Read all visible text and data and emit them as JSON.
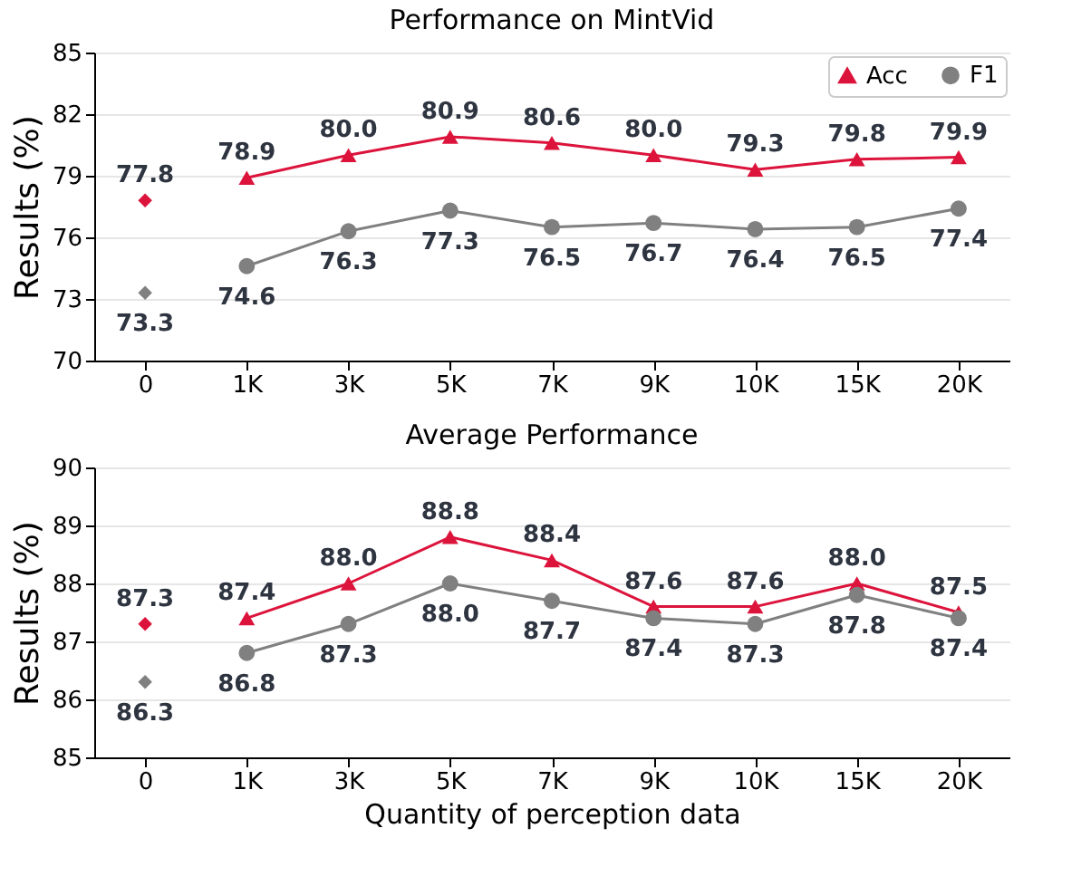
{
  "chart_data": [
    {
      "type": "line",
      "title": "Performance on MintVid",
      "ylabel": "Results (%)",
      "categories": [
        "0",
        "1K",
        "3K",
        "5K",
        "7K",
        "9K",
        "10K",
        "15K",
        "20K"
      ],
      "ylim": [
        70,
        85
      ],
      "yticks": [
        70,
        73,
        76,
        79,
        82,
        85
      ],
      "grid": "y",
      "legend": "top right",
      "line_style": "solid",
      "series": [
        {
          "name": "Acc",
          "color": "#dc143c",
          "marker": "triangle",
          "values": [
            null,
            78.9,
            80.0,
            80.9,
            80.6,
            80.0,
            79.3,
            79.8,
            79.9
          ],
          "value_labels": [
            null,
            "78.9",
            "80.0",
            "80.9",
            "80.6",
            "80.0",
            "79.3",
            "79.8",
            "79.9"
          ]
        },
        {
          "name": "F1",
          "color": "#808080",
          "marker": "circle",
          "values": [
            null,
            74.6,
            76.3,
            77.3,
            76.5,
            76.7,
            76.4,
            76.5,
            77.4
          ],
          "value_labels": [
            null,
            "74.6",
            "76.3",
            "77.3",
            "76.5",
            "76.7",
            "76.4",
            "76.5",
            "77.4"
          ]
        },
        {
          "type": "scatter",
          "color": "#dc143c",
          "marker": "diamond",
          "values": [
            77.8,
            null,
            null,
            null,
            null,
            null,
            null,
            null,
            null
          ],
          "value_labels": [
            "77.8",
            null,
            null,
            null,
            null,
            null,
            null,
            null,
            null
          ]
        },
        {
          "type": "scatter",
          "color": "#808080",
          "marker": "diamond",
          "values": [
            73.3,
            null,
            null,
            null,
            null,
            null,
            null,
            null,
            null
          ],
          "value_labels": [
            "73.3",
            null,
            null,
            null,
            null,
            null,
            null,
            null,
            null
          ]
        }
      ]
    },
    {
      "type": "line",
      "title": "Average Performance",
      "xlabel": "Quantity of perception data",
      "ylabel": "Results (%)",
      "categories": [
        "0",
        "1K",
        "3K",
        "5K",
        "7K",
        "9K",
        "10K",
        "15K",
        "20K"
      ],
      "ylim": [
        85,
        90
      ],
      "yticks": [
        85,
        86,
        87,
        88,
        89,
        90
      ],
      "grid": "y",
      "legend": "top right",
      "line_style": "solid",
      "series": [
        {
          "name": "Acc",
          "color": "#dc143c",
          "marker": "triangle",
          "values": [
            null,
            87.4,
            88.0,
            88.8,
            88.4,
            87.6,
            87.6,
            88.0,
            87.5
          ],
          "value_labels": [
            null,
            "87.4",
            "88.0",
            "88.8",
            "88.4",
            "87.6",
            "87.6",
            "88.0",
            "87.5"
          ]
        },
        {
          "name": "F1",
          "color": "#808080",
          "marker": "circle",
          "values": [
            null,
            86.8,
            87.3,
            88.0,
            87.7,
            87.4,
            87.3,
            87.8,
            87.4
          ],
          "value_labels": [
            null,
            "86.8",
            "87.3",
            "88.0",
            "87.7",
            "87.4",
            "87.3",
            "87.8",
            "87.4"
          ]
        },
        {
          "type": "scatter",
          "color": "#dc143c",
          "marker": "diamond",
          "values": [
            87.3,
            null,
            null,
            null,
            null,
            null,
            null,
            null,
            null
          ],
          "value_labels": [
            "87.3",
            null,
            null,
            null,
            null,
            null,
            null,
            null,
            null
          ]
        },
        {
          "type": "scatter",
          "color": "#808080",
          "marker": "diamond",
          "values": [
            86.3,
            null,
            null,
            null,
            null,
            null,
            null,
            null,
            null
          ],
          "value_labels": [
            "86.3",
            null,
            null,
            null,
            null,
            null,
            null,
            null,
            null
          ]
        }
      ]
    }
  ]
}
